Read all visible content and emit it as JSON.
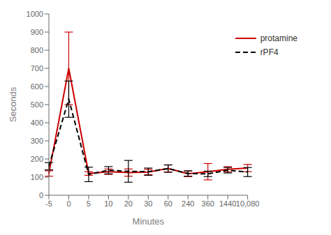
{
  "chart_data": {
    "type": "line",
    "xlabel": "Minutes",
    "ylabel": "Seconds",
    "categories": [
      "-5",
      "0",
      "5",
      "10",
      "20",
      "30",
      "60",
      "240",
      "360",
      "1440",
      "10,080"
    ],
    "ylim": [
      0,
      1000
    ],
    "yticks": [
      0,
      100,
      200,
      300,
      400,
      500,
      600,
      700,
      800,
      900,
      1000
    ],
    "grid": false,
    "legend": "upper right",
    "series": [
      {
        "name": "protamine",
        "color": "#cc0000",
        "line_style": "solid",
        "values": [
          120,
          700,
          120,
          130,
          125,
          128,
          148,
          118,
          130,
          143,
          150
        ],
        "err_low": [
          15,
          200,
          10,
          15,
          20,
          15,
          20,
          15,
          45,
          15,
          20
        ],
        "err_high": [
          15,
          200,
          10,
          15,
          20,
          15,
          20,
          15,
          45,
          15,
          20
        ]
      },
      {
        "name": "rPF4",
        "color": "#000000",
        "line_style": "dashed",
        "values": [
          160,
          530,
          115,
          138,
          132,
          130,
          147,
          120,
          118,
          138,
          128
        ],
        "err_low": [
          20,
          100,
          40,
          20,
          60,
          20,
          20,
          15,
          15,
          15,
          25
        ],
        "err_high": [
          20,
          100,
          40,
          20,
          60,
          20,
          20,
          15,
          15,
          15,
          25
        ]
      }
    ]
  }
}
